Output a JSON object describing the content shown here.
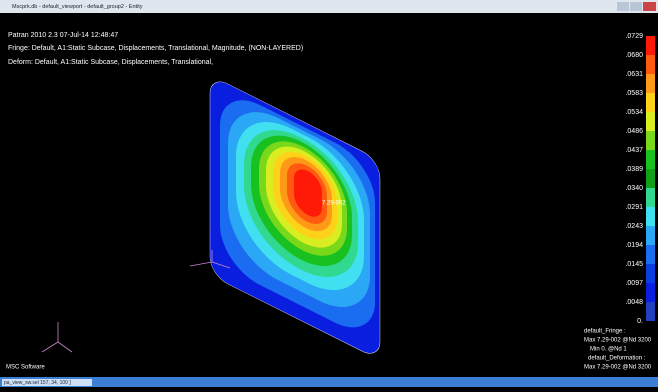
{
  "window": {
    "title": "Mscprk.db - default_viewport - default_group2 - Entity"
  },
  "header": {
    "lines": [
      "Patran 2010 2.3 07-Jul-14 12:48:47",
      "Fringe: Default, A1:Static Subcase, Displacements, Translational, Magnitude, (NON-LAYERED)",
      "Deform: Default, A1:Static Subcase, Displacements, Translational,"
    ]
  },
  "plot": {
    "max_label": "7.29-002"
  },
  "legend": {
    "labels": [
      ".0729",
      ".0680",
      ".0631",
      ".0583",
      ".0534",
      ".0486",
      ".0437",
      ".0389",
      ".0340",
      ".0291",
      ".0243",
      ".0194",
      ".0145",
      ".0097",
      ".0048",
      "0."
    ]
  },
  "summary": {
    "lines": [
      "default_Fringe :",
      "Max 7.29-002 @Nd 3200",
      "Min 0. @Nd 1",
      "default_Deformation :",
      "Max 7.29-002 @Nd 3200"
    ]
  },
  "branding": "MSC Software",
  "status": "pa_view_sw.sel 157, 34, 100 ]"
}
